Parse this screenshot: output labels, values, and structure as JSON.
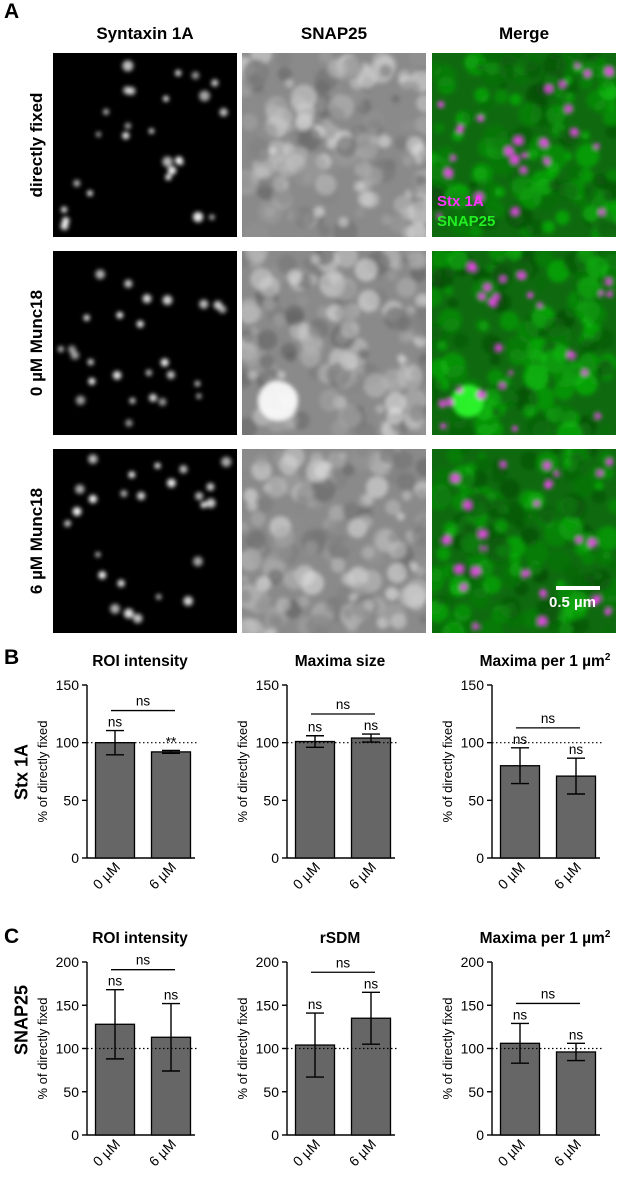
{
  "figure": {
    "panel_labels": {
      "a": "A",
      "b": "B",
      "c": "C"
    },
    "columns": [
      "Syntaxin 1A",
      "SNAP25",
      "Merge"
    ],
    "rows": [
      "directly fixed",
      "0 µM Munc18",
      "6 µM Munc18"
    ],
    "merge_legend": {
      "stx": "Stx 1A",
      "snap": "SNAP25",
      "stx_color": "#ff33ff",
      "snap_color": "#22ee22"
    },
    "scale_bar": "0.5 µm",
    "row_labels_charts": {
      "b": "Stx 1A",
      "c": "SNAP25"
    },
    "colors": {
      "bar_fill": "#666666",
      "bar_stroke": "#000000"
    }
  },
  "chart_data": [
    {
      "id": "b1",
      "type": "bar",
      "title": "ROI intensity",
      "ylabel": "% of directly fixed",
      "categories": [
        "0 µM",
        "6 µM"
      ],
      "values": [
        100,
        92
      ],
      "errors": [
        10.5,
        1.2
      ],
      "ylim": [
        0,
        150
      ],
      "yticks": [
        0,
        50,
        100,
        150
      ],
      "reference": 100,
      "annotations": [
        "ns",
        "**"
      ],
      "bracket": "ns"
    },
    {
      "id": "b2",
      "type": "bar",
      "title": "Maxima size",
      "ylabel": "% of directly fixed",
      "categories": [
        "0 µM",
        "6 µM"
      ],
      "values": [
        101,
        104
      ],
      "errors": [
        5,
        3.5
      ],
      "ylim": [
        0,
        150
      ],
      "yticks": [
        0,
        50,
        100,
        150
      ],
      "reference": 100,
      "annotations": [
        "ns",
        "ns"
      ],
      "bracket": "ns"
    },
    {
      "id": "b3",
      "type": "bar",
      "title": "Maxima per 1 µm",
      "title_sup": "2",
      "ylabel": "% of directly fixed",
      "categories": [
        "0 µM",
        "6 µM"
      ],
      "values": [
        80,
        71
      ],
      "errors": [
        15.5,
        15.5
      ],
      "ylim": [
        0,
        150
      ],
      "yticks": [
        0,
        50,
        100,
        150
      ],
      "reference": 100,
      "annotations": [
        "ns",
        "ns"
      ],
      "bracket": "ns"
    },
    {
      "id": "c1",
      "type": "bar",
      "title": "ROI intensity",
      "ylabel": "% of directly fixed",
      "categories": [
        "0 µM",
        "6 µM"
      ],
      "values": [
        128,
        113
      ],
      "errors": [
        40,
        39
      ],
      "ylim": [
        0,
        200
      ],
      "yticks": [
        0,
        50,
        100,
        150,
        200
      ],
      "reference": 100,
      "annotations": [
        "ns",
        "ns"
      ],
      "bracket": "ns"
    },
    {
      "id": "c2",
      "type": "bar",
      "title": "rSDM",
      "ylabel": "% of directly fixed",
      "categories": [
        "0 µM",
        "6 µM"
      ],
      "values": [
        104,
        135
      ],
      "errors": [
        37,
        30
      ],
      "ylim": [
        0,
        200
      ],
      "yticks": [
        0,
        50,
        100,
        150,
        200
      ],
      "reference": 100,
      "annotations": [
        "ns",
        "ns"
      ],
      "bracket": "ns"
    },
    {
      "id": "c3",
      "type": "bar",
      "title": "Maxima per 1 µm",
      "title_sup": "2",
      "ylabel": "% of directly fixed",
      "categories": [
        "0 µM",
        "6 µM"
      ],
      "values": [
        106,
        96
      ],
      "errors": [
        23,
        10
      ],
      "ylim": [
        0,
        200
      ],
      "yticks": [
        0,
        50,
        100,
        150,
        200
      ],
      "reference": 100,
      "annotations": [
        "ns",
        "ns"
      ],
      "bracket": "ns"
    }
  ]
}
